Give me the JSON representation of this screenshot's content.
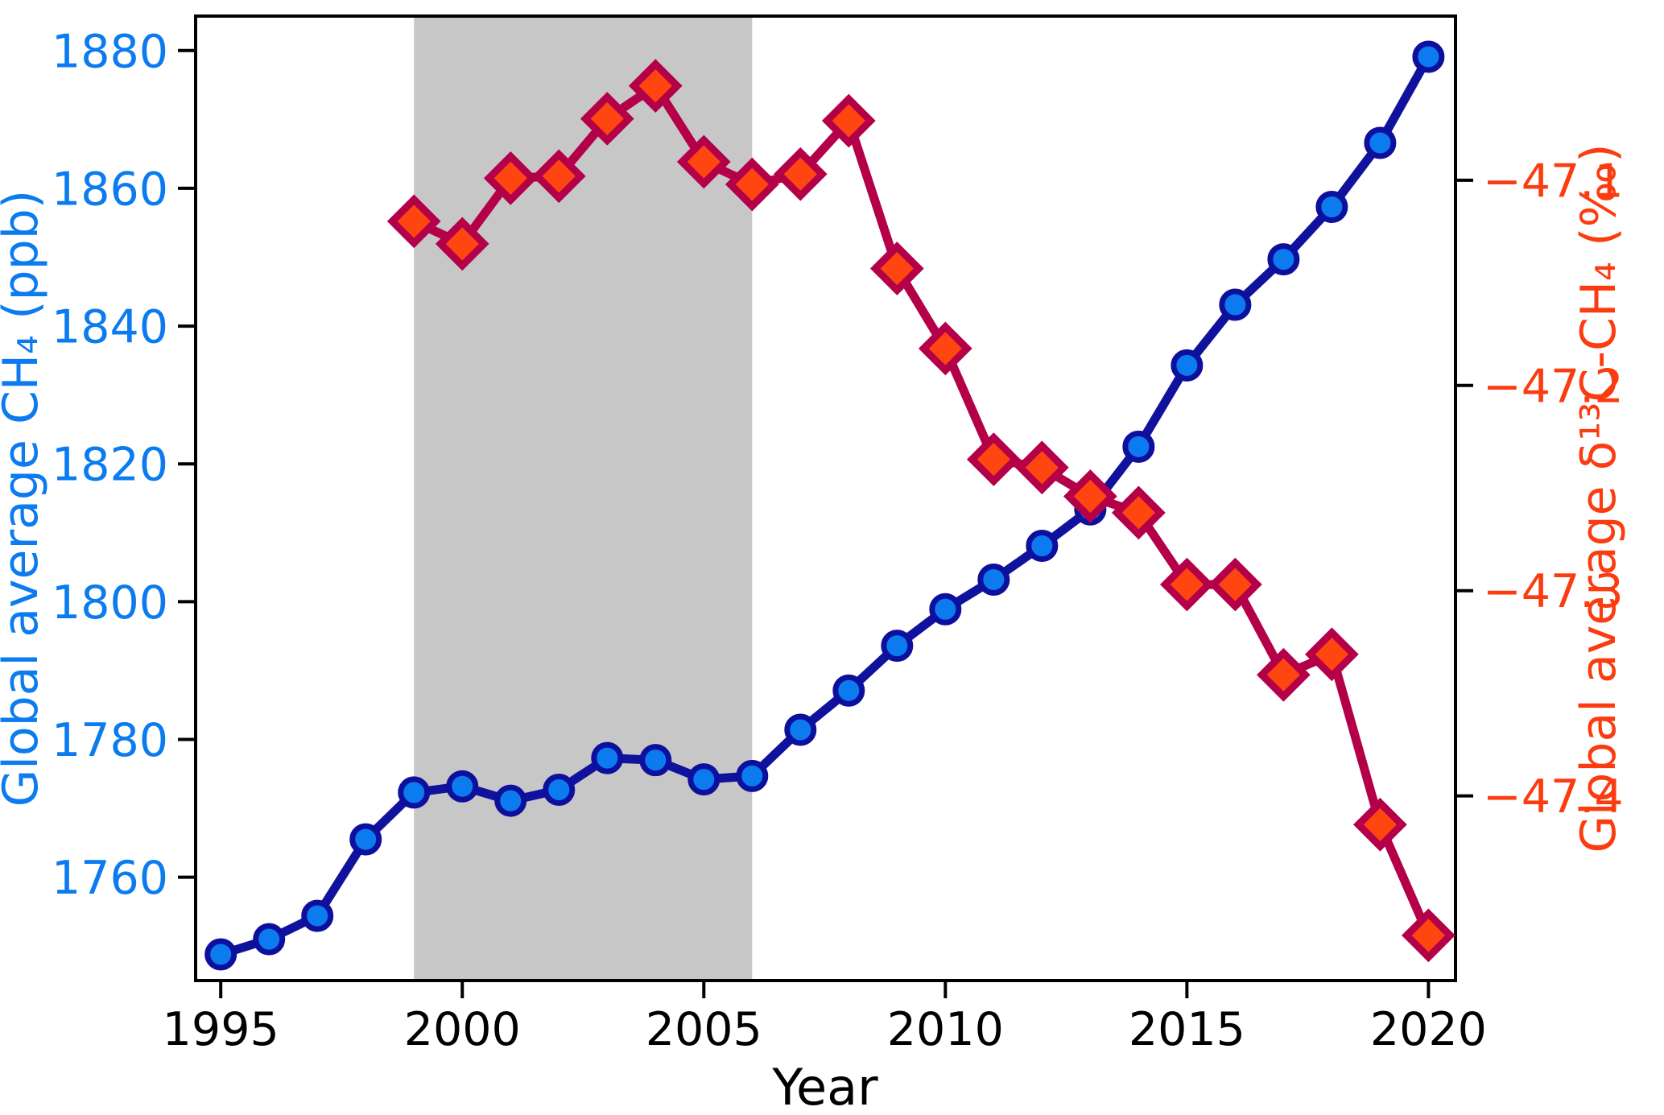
{
  "chart_data": {
    "type": "line",
    "title": "",
    "x": {
      "label": "Year",
      "range": [
        1994.48,
        2020.56
      ],
      "ticks": [
        1995,
        2000,
        2005,
        2010,
        2015,
        2020
      ]
    },
    "y_left": {
      "label": "Global average CH₄ (ppb)",
      "range": [
        1745,
        1885
      ],
      "ticks": [
        1760,
        1780,
        1800,
        1820,
        1840,
        1860,
        1880
      ],
      "color": "#0b7bef"
    },
    "y_right": {
      "label": "Global average δ¹³C-CH₄ (‰)",
      "range": [
        -47.49,
        -47.02
      ],
      "ticks": [
        {
          "v": -47.1,
          "label": "−47.1"
        },
        {
          "v": -47.2,
          "label": "−47.2"
        },
        {
          "v": -47.3,
          "label": "−47.3"
        },
        {
          "v": -47.4,
          "label": "−47.4"
        }
      ],
      "color": "#fb3c10"
    },
    "shaded_region": {
      "x0": 1999,
      "x1": 2006,
      "color": "#c7c7c7"
    },
    "grid": false,
    "legend": null,
    "frame_color": "#000000",
    "series": [
      {
        "name": "Global average CH4 (ppb)",
        "axis": "left",
        "marker": "circle",
        "line_color": "#10129e",
        "marker_fill": "#0b7bef",
        "marker_edge": "#0d109d",
        "years": [
          1995,
          1996,
          1997,
          1998,
          1999,
          2000,
          2001,
          2002,
          2003,
          2004,
          2005,
          2006,
          2007,
          2008,
          2009,
          2010,
          2011,
          2012,
          2013,
          2014,
          2015,
          2016,
          2017,
          2018,
          2019,
          2020
        ],
        "values": [
          1748.8,
          1751.0,
          1754.4,
          1765.5,
          1772.3,
          1773.2,
          1771.1,
          1772.7,
          1777.3,
          1777.0,
          1774.2,
          1774.7,
          1781.4,
          1787.1,
          1793.6,
          1798.9,
          1803.2,
          1808.1,
          1813.4,
          1822.5,
          1834.3,
          1843.1,
          1849.7,
          1857.3,
          1866.6,
          1879.1
        ]
      },
      {
        "name": "Global average d13C-CH4 (permil)",
        "axis": "right",
        "marker": "diamond",
        "line_color": "#b40048",
        "marker_fill": "#ff4510",
        "marker_edge": "#b40048",
        "years": [
          1999,
          2000,
          2001,
          2002,
          2003,
          2004,
          2005,
          2006,
          2007,
          2008,
          2009,
          2010,
          2011,
          2012,
          2013,
          2014,
          2015,
          2016,
          2017,
          2018,
          2019,
          2020
        ],
        "values": [
          -47.12,
          -47.131,
          -47.099,
          -47.098,
          -47.07,
          -47.054,
          -47.091,
          -47.102,
          -47.097,
          -47.071,
          -47.143,
          -47.182,
          -47.236,
          -47.24,
          -47.254,
          -47.262,
          -47.297,
          -47.297,
          -47.341,
          -47.331,
          -47.414,
          -47.468
        ]
      }
    ]
  }
}
